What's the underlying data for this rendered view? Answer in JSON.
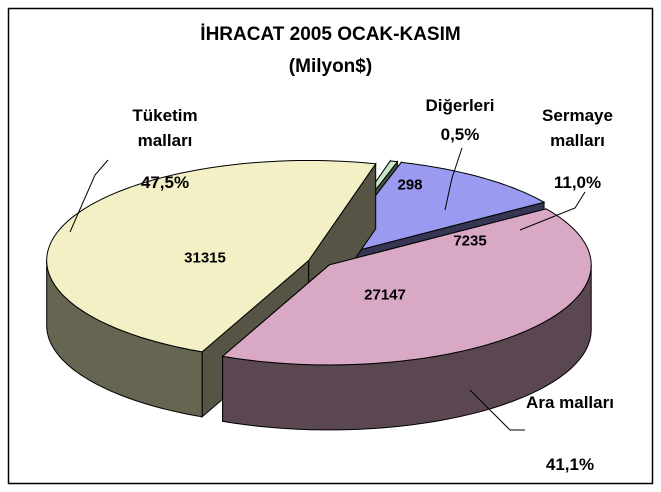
{
  "chart_data": {
    "type": "pie3d",
    "title": "İHRACAT 2005 OCAK-KASIM",
    "subtitle": "(Milyon$)",
    "categories": [
      "Tüketim malları",
      "Diğerleri",
      "Sermaye malları",
      "Ara malları"
    ],
    "values": [
      31315,
      298,
      7235,
      27147
    ],
    "percents": [
      47.5,
      0.5,
      11.0,
      41.1
    ],
    "percent_labels": [
      "47,5%",
      "0,5%",
      "11,0%",
      "41,1%"
    ],
    "colors": [
      "#f2f0c4",
      "#c8e8c8",
      "#9a9af0",
      "#d8a8c4"
    ]
  }
}
